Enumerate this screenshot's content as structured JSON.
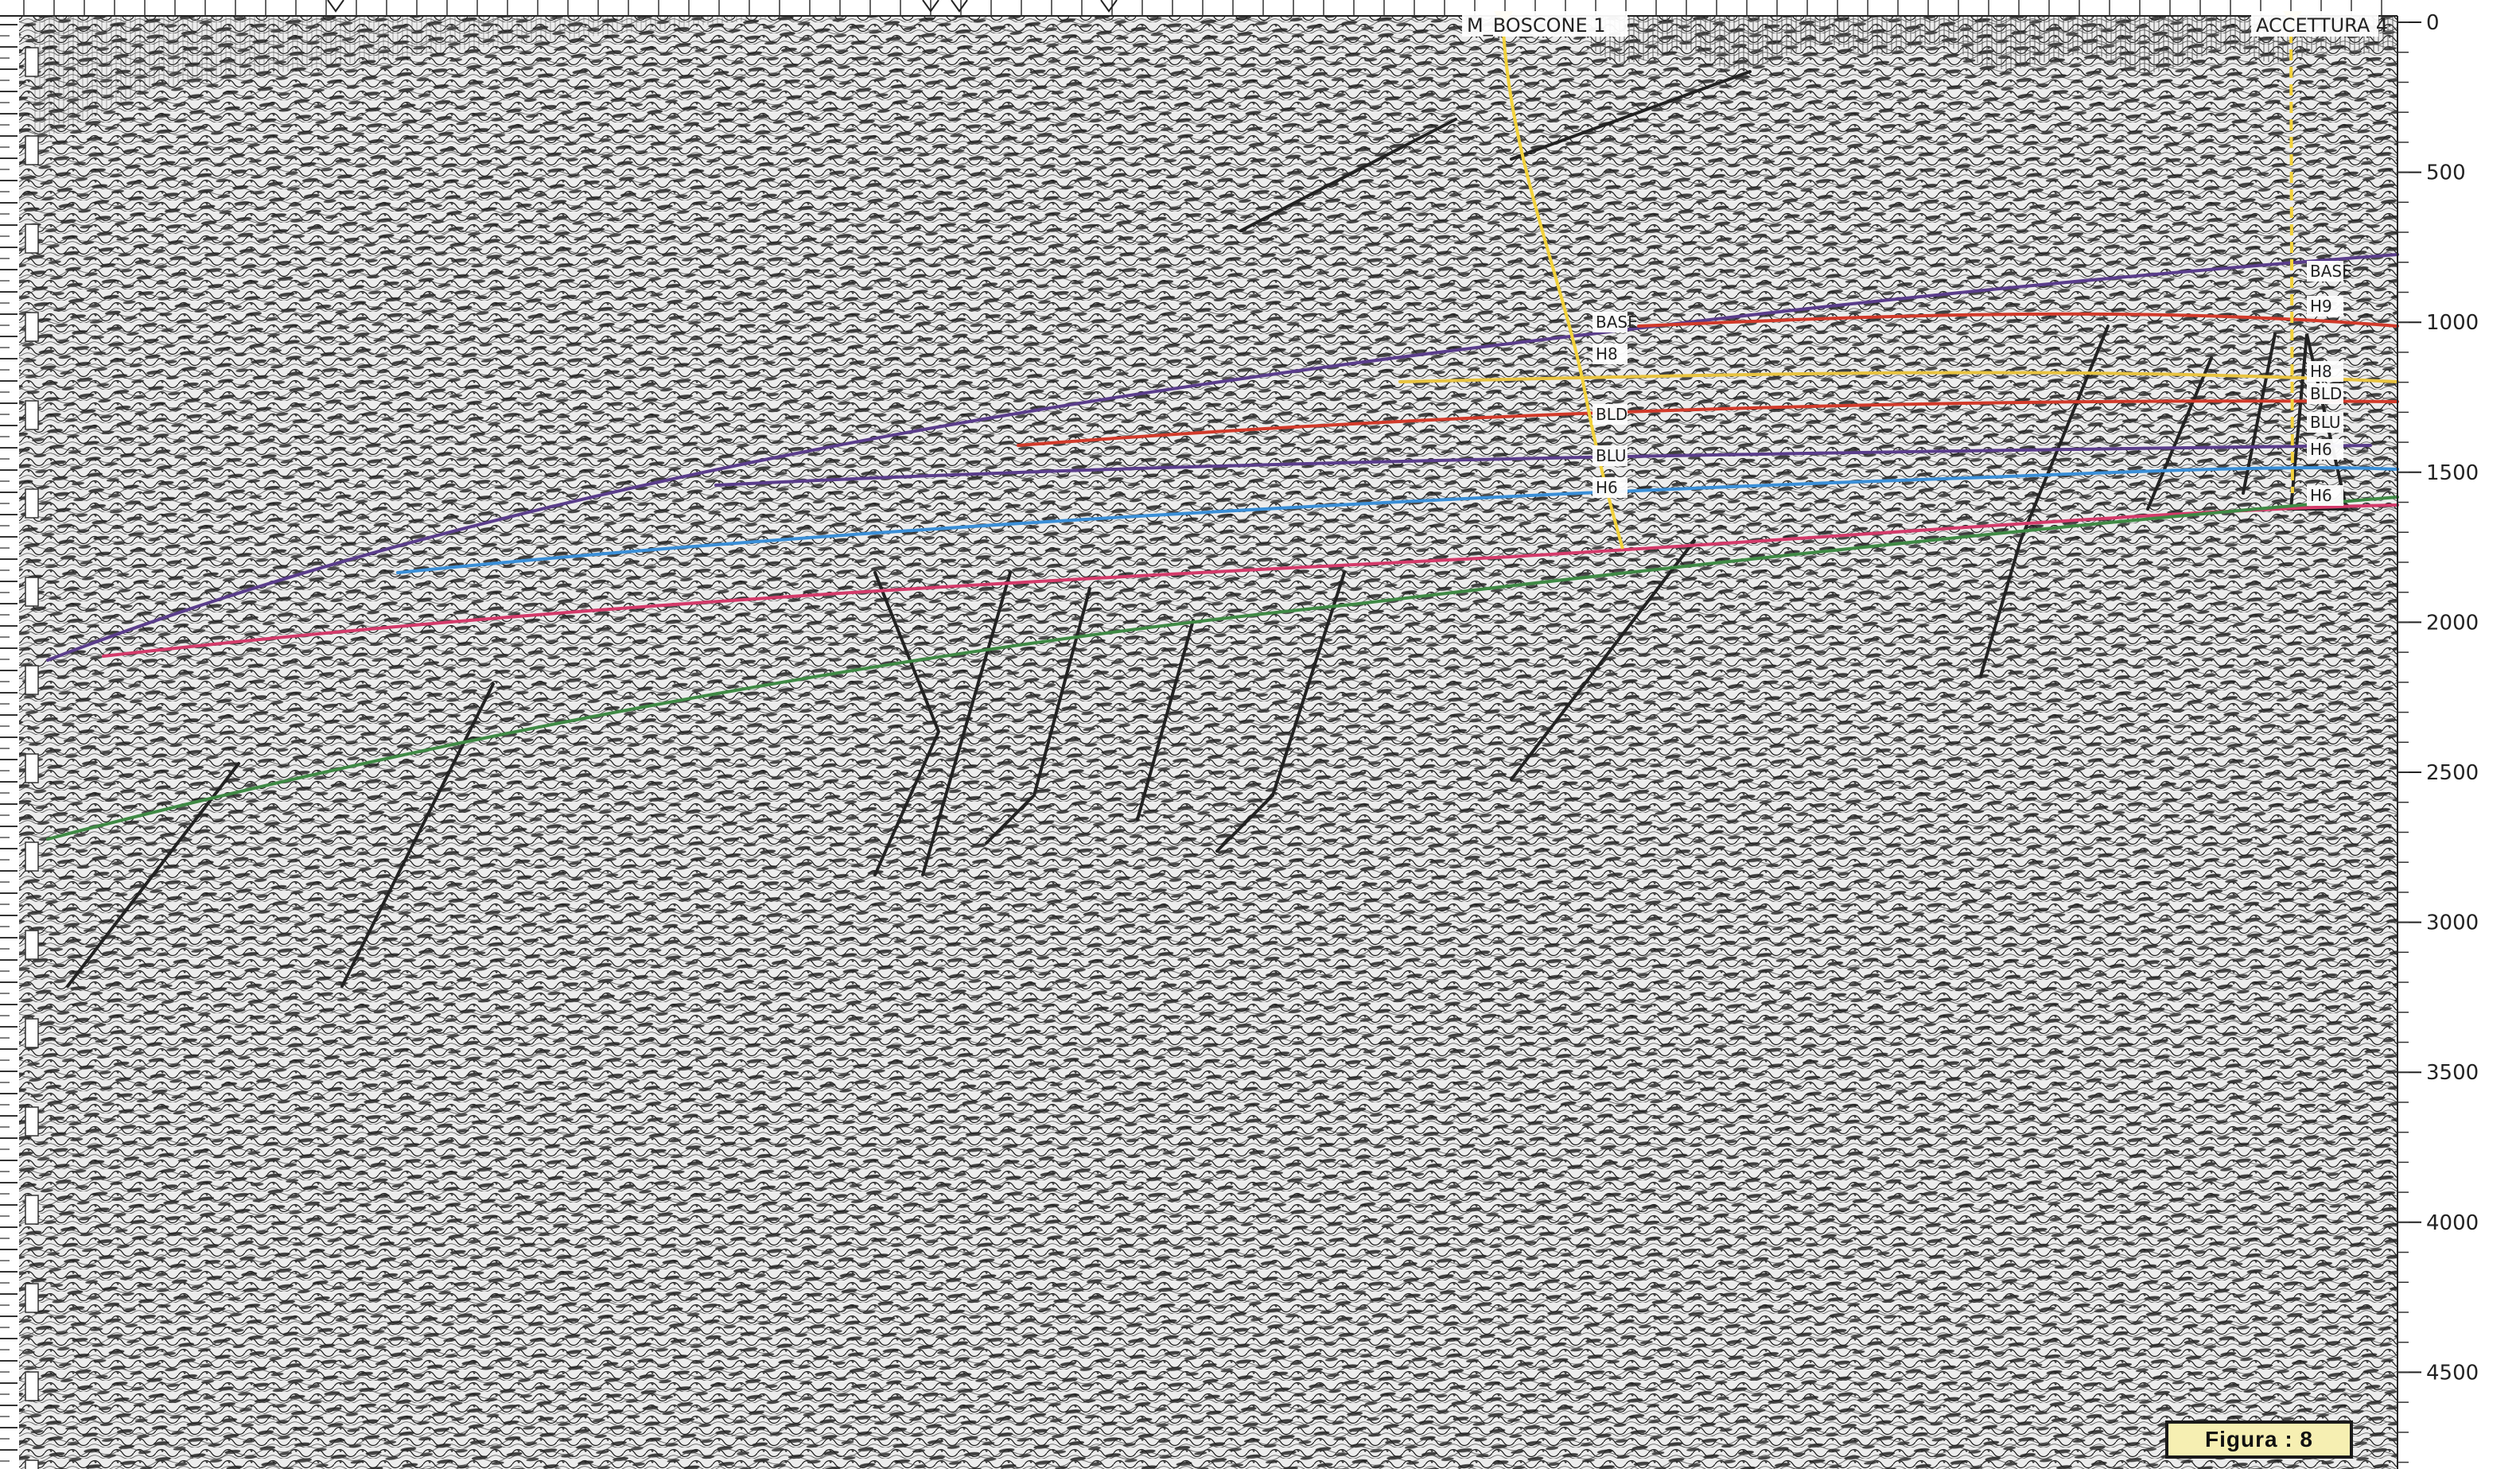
{
  "section": {
    "time_axis_labels": [
      "0",
      "500",
      "1000",
      "1500",
      "2000",
      "2500",
      "3000",
      "3500",
      "4000",
      "4500"
    ],
    "well_labels": [
      "M_BOSCONE  1",
      "ACCETTURA  4"
    ],
    "horizon_labels_left_well": [
      "BASE",
      "H8",
      "BLD",
      "BLU",
      "H6"
    ],
    "horizon_labels_right_well": [
      "BASE",
      "H9",
      "H8",
      "BLD",
      "BLU",
      "H6",
      "H6"
    ],
    "figure_caption": "Figura :  8"
  },
  "colors": {
    "horizon_purple": "#5a3d8c",
    "horizon_red": "#d23a2a",
    "horizon_yellow": "#e8c340",
    "horizon_blue": "#3a8fd8",
    "horizon_magenta": "#d43a6a",
    "horizon_green": "#3f8a45",
    "well_path": "#f2d23c",
    "faults": "#222222",
    "caption_bg": "#f6efb2"
  }
}
